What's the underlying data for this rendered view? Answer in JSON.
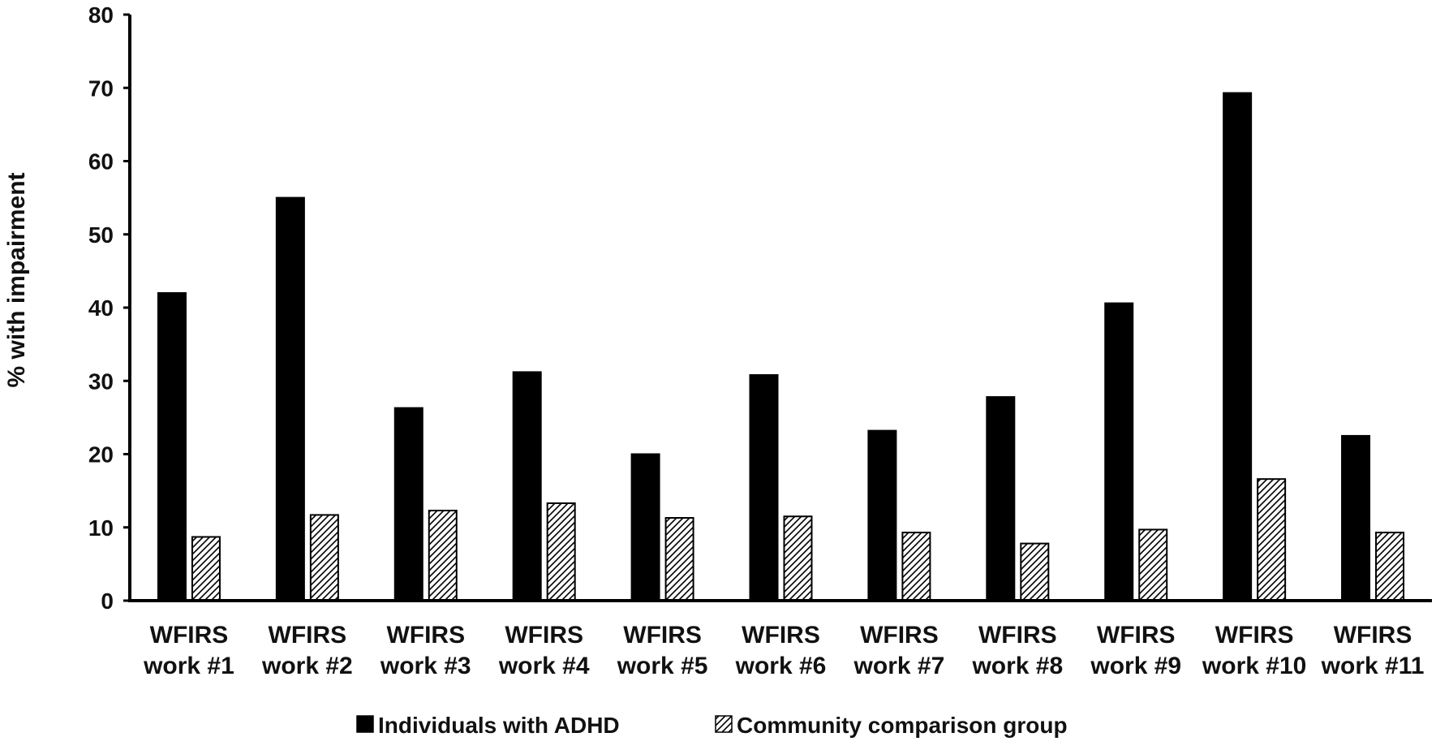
{
  "chart_data": {
    "type": "bar",
    "title": "",
    "xlabel": "",
    "ylabel": "% with impairment",
    "ylim": [
      0,
      80
    ],
    "yticks": [
      0,
      10,
      20,
      30,
      40,
      50,
      60,
      70,
      80
    ],
    "grid": false,
    "legend_position": "bottom",
    "categories": [
      [
        "WFIRS",
        "work #1"
      ],
      [
        "WFIRS",
        "work #2"
      ],
      [
        "WFIRS",
        "work #3"
      ],
      [
        "WFIRS",
        "work #4"
      ],
      [
        "WFIRS",
        "work #5"
      ],
      [
        "WFIRS",
        "work #6"
      ],
      [
        "WFIRS",
        "work #7"
      ],
      [
        "WFIRS",
        "work #8"
      ],
      [
        "WFIRS",
        "work #9"
      ],
      [
        "WFIRS",
        "work #10"
      ],
      [
        "WFIRS",
        "work #11"
      ]
    ],
    "series": [
      {
        "name": "Individuals with ADHD",
        "fill": "solid-black",
        "color": "#000000",
        "values": [
          42.0,
          55.0,
          26.3,
          31.2,
          20.0,
          30.8,
          23.2,
          27.8,
          40.6,
          69.3,
          22.5
        ]
      },
      {
        "name": "Community comparison group",
        "fill": "diagonal-hatch",
        "color": "#000000",
        "values": [
          8.7,
          11.7,
          12.3,
          13.3,
          11.3,
          11.5,
          9.3,
          7.8,
          9.7,
          16.6,
          9.3
        ]
      }
    ]
  }
}
